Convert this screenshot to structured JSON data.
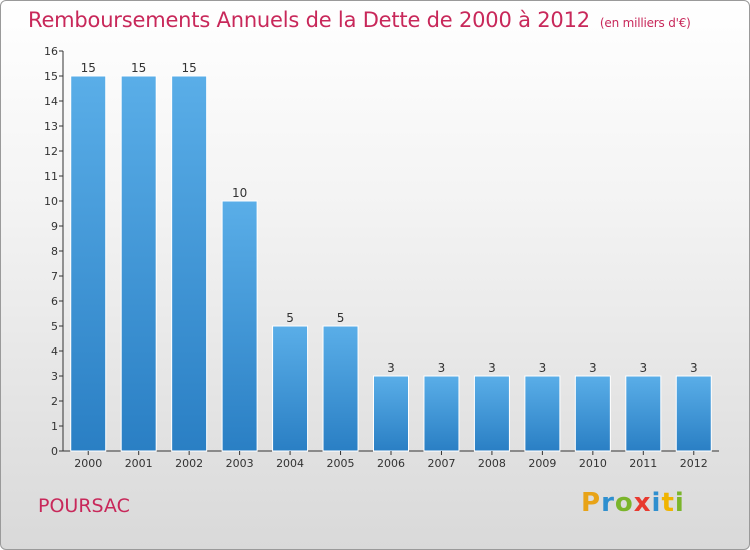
{
  "header": {
    "title": "Remboursements Annuels de la Dette de 2000 à 2012",
    "unit": "(en milliers d'€)"
  },
  "footer": {
    "commune": "POURSAC",
    "logo": "Proxiti"
  },
  "colors": {
    "title": "#c8285a",
    "bar_top": "#5aaee8",
    "bar_bottom": "#2a7fc4",
    "logo_letters": [
      "#e8a317",
      "#2e8fcf",
      "#7bb52b",
      "#e8392f",
      "#2e8fcf",
      "#f0b400",
      "#7bb52b"
    ]
  },
  "chart_data": {
    "type": "bar",
    "title": "Remboursements Annuels de la Dette de 2000 à 2012",
    "categories": [
      "2000",
      "2001",
      "2002",
      "2003",
      "2004",
      "2005",
      "2006",
      "2007",
      "2008",
      "2009",
      "2010",
      "2011",
      "2012"
    ],
    "values": [
      15,
      15,
      15,
      10,
      5,
      5,
      3,
      3,
      3,
      3,
      3,
      3,
      3
    ],
    "data_labels": [
      "15",
      "15",
      "15",
      "10",
      "5",
      "5",
      "3",
      "3",
      "3",
      "3",
      "3",
      "3",
      "3"
    ],
    "yticks": [
      "0",
      "1",
      "2",
      "3",
      "4",
      "5",
      "6",
      "7",
      "8",
      "9",
      "10",
      "11",
      "12",
      "13",
      "14",
      "15",
      "16"
    ],
    "ylim": [
      0,
      16
    ],
    "xlabel": "",
    "ylabel": "",
    "grid": false
  }
}
